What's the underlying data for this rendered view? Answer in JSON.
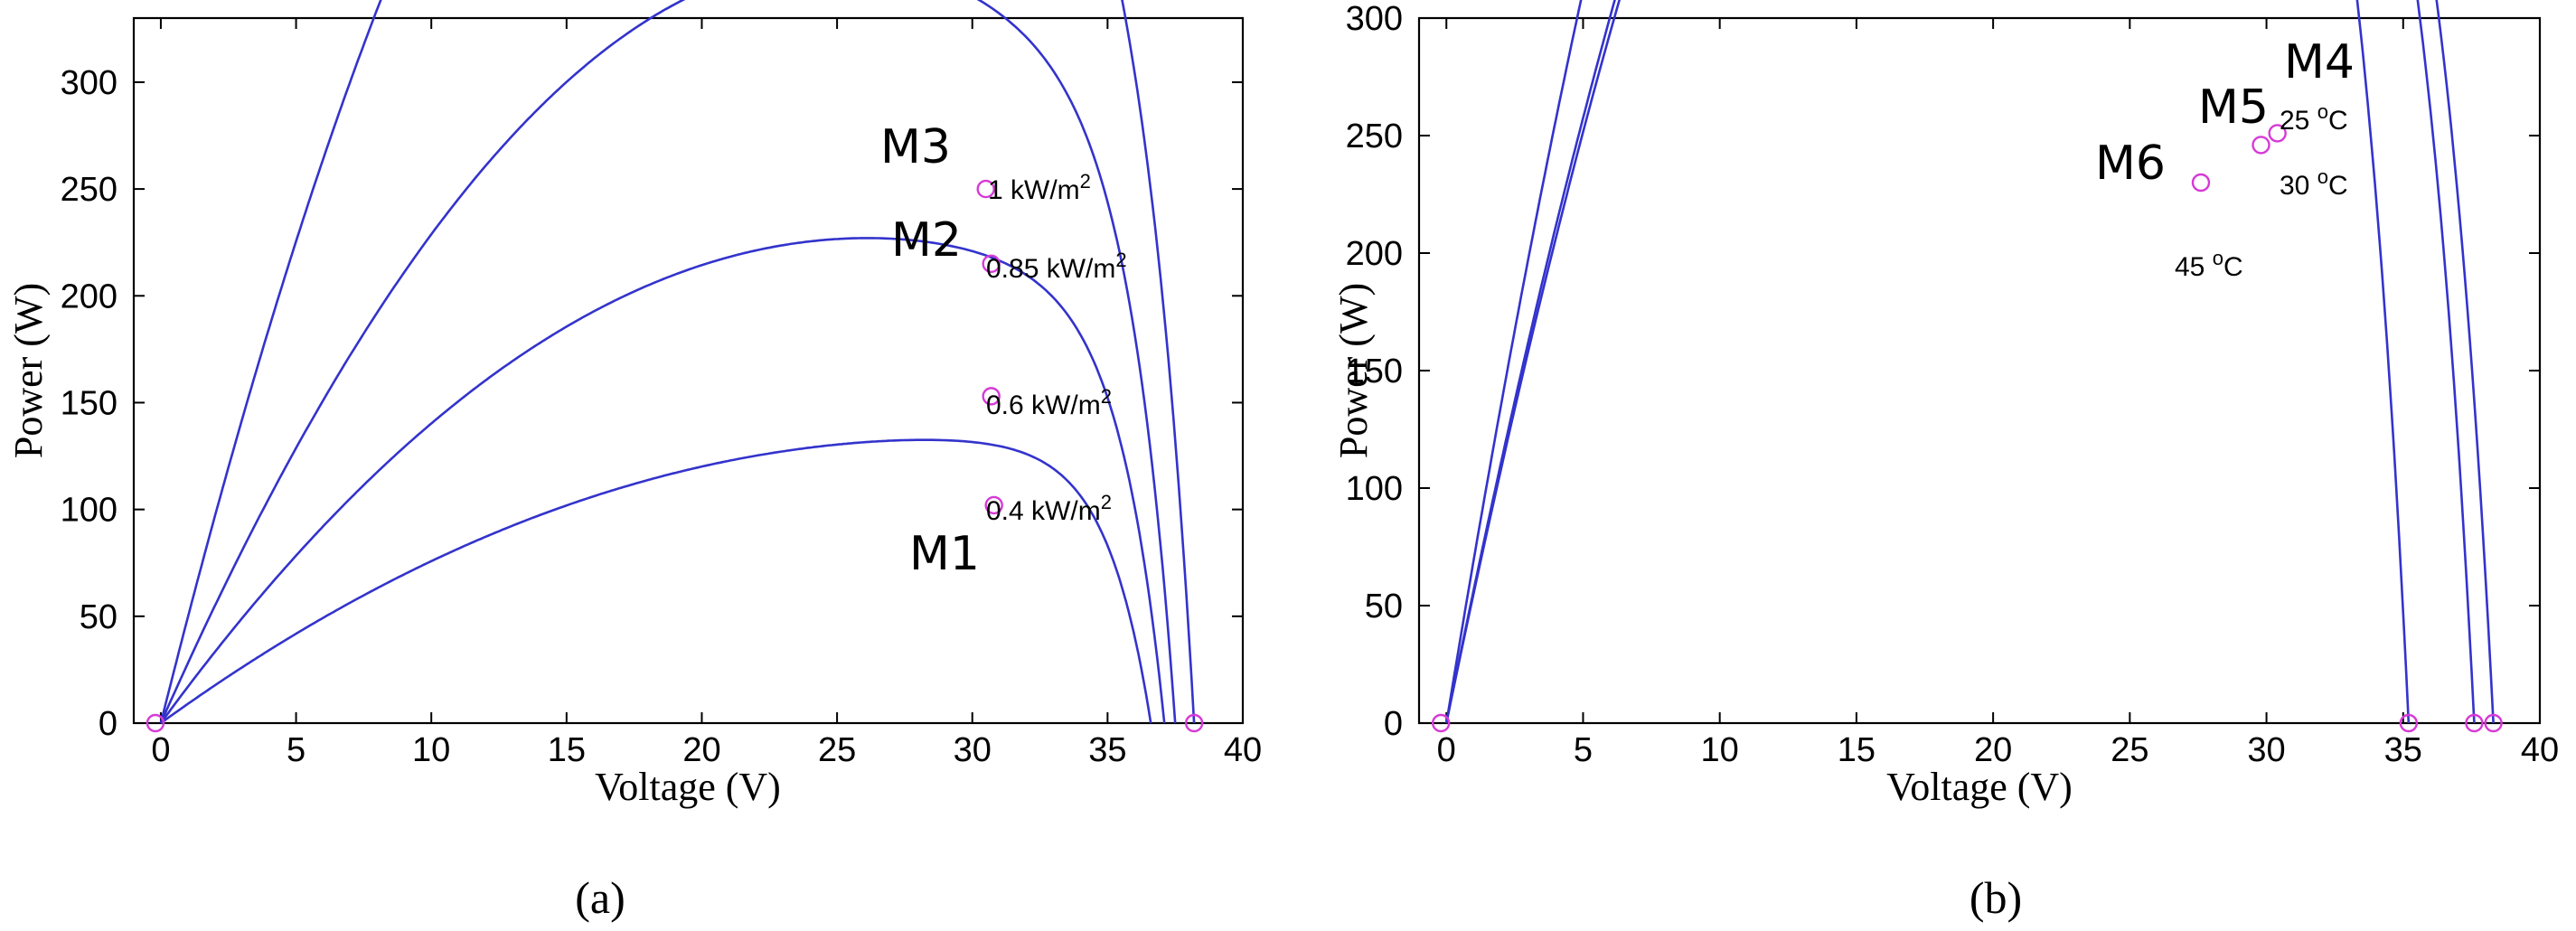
{
  "chart_data": [
    {
      "type": "line",
      "panel": "a",
      "caption": "(a)",
      "xlabel": "Voltage (V)",
      "ylabel": "Power (W)",
      "xlim": [
        -1,
        40
      ],
      "ylim": [
        0,
        330
      ],
      "xticks": [
        "0",
        "5",
        "10",
        "15",
        "20",
        "25",
        "30",
        "35",
        "40"
      ],
      "yticks": [
        "0",
        "50",
        "100",
        "150",
        "200",
        "250",
        "300"
      ],
      "series": [
        {
          "name": "1 kW/m2",
          "mpp_v": 30.5,
          "mpp_p": 250,
          "voc": 38.2,
          "curve_label_text": "1 kW/m",
          "curve_label_sup": "2",
          "point_label": "M3"
        },
        {
          "name": "0.85 kW/m2",
          "mpp_v": 30.7,
          "mpp_p": 215,
          "voc": 37.5,
          "curve_label_text": "0.85 kW/m",
          "curve_label_sup": "2",
          "point_label": "M2"
        },
        {
          "name": "0.6 kW/m2",
          "mpp_v": 30.7,
          "mpp_p": 153,
          "voc": 37.1,
          "curve_label_text": "0.6 kW/m",
          "curve_label_sup": "2",
          "point_label": ""
        },
        {
          "name": "0.4 kW/m2",
          "mpp_v": 30.8,
          "mpp_p": 102,
          "voc": 36.6,
          "curve_label_text": "0.4 kW/m",
          "curve_label_sup": "2",
          "point_label": "M1"
        }
      ],
      "extra_markers": [
        [
          -0.2,
          0
        ],
        [
          38.2,
          0
        ]
      ]
    },
    {
      "type": "line",
      "panel": "b",
      "caption": "(b)",
      "xlabel": "Voltage (V)",
      "ylabel": "Power (W)",
      "xlim": [
        -1,
        40
      ],
      "ylim": [
        0,
        300
      ],
      "xticks": [
        "0",
        "5",
        "10",
        "15",
        "20",
        "25",
        "30",
        "35",
        "40"
      ],
      "yticks": [
        "0",
        "50",
        "100",
        "150",
        "200",
        "250",
        "300"
      ],
      "series": [
        {
          "name": "25 °C",
          "mpp_v": 30.4,
          "mpp_p": 251,
          "voc": 38.3,
          "curve_label_text": "25 ",
          "curve_label_sup": "o",
          "curve_label_unit": "C",
          "point_label": "M4"
        },
        {
          "name": "30 °C",
          "mpp_v": 29.8,
          "mpp_p": 246,
          "voc": 37.6,
          "curve_label_text": "30 ",
          "curve_label_sup": "o",
          "curve_label_unit": "C",
          "point_label": "M5"
        },
        {
          "name": "45 °C",
          "mpp_v": 27.6,
          "mpp_p": 230,
          "voc": 35.2,
          "curve_label_text": "45 ",
          "curve_label_sup": "o",
          "curve_label_unit": "C",
          "point_label": "M6"
        }
      ],
      "extra_markers": [
        [
          -0.2,
          0
        ],
        [
          35.2,
          0
        ],
        [
          37.6,
          0
        ],
        [
          38.3,
          0
        ]
      ]
    }
  ]
}
